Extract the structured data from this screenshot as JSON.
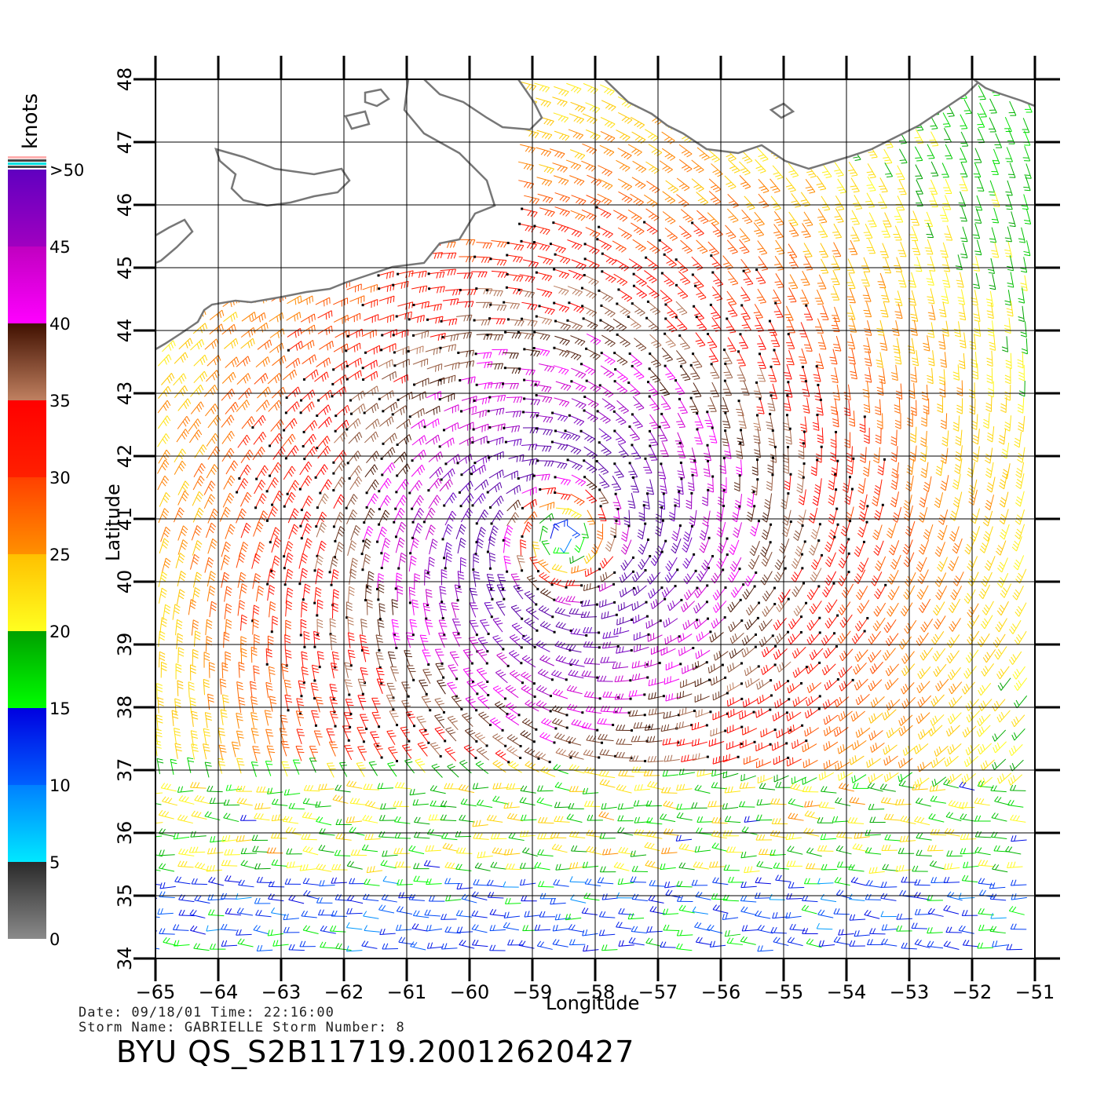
{
  "axes": {
    "xlabel": "Longitude",
    "ylabel": "Latitude",
    "lon_ticks": [
      -65,
      -64,
      -63,
      -62,
      -61,
      -60,
      -59,
      -58,
      -57,
      -56,
      -55,
      -54,
      -53,
      -52,
      -51
    ],
    "lat_ticks": [
      34,
      35,
      36,
      37,
      38,
      39,
      40,
      41,
      42,
      43,
      44,
      45,
      46,
      47,
      48
    ],
    "lon_range": [
      -65,
      -51
    ],
    "lat_range": [
      34,
      48
    ]
  },
  "colorbar": {
    "unit": "knots",
    "labels": [
      "0",
      "5",
      "10",
      "15",
      "20",
      "25",
      "30",
      "35",
      "40",
      "45",
      ">50"
    ],
    "bands": [
      {
        "from": 0,
        "to": 5,
        "top": "#2a2a2a",
        "bottom": "#8a8a8a"
      },
      {
        "from": 5,
        "to": 10,
        "top": "#0080ff",
        "bottom": "#00e8ff"
      },
      {
        "from": 10,
        "to": 15,
        "top": "#0000e0",
        "bottom": "#0060ff"
      },
      {
        "from": 15,
        "to": 20,
        "top": "#00a000",
        "bottom": "#00ff00"
      },
      {
        "from": 20,
        "to": 25,
        "top": "#ffc000",
        "bottom": "#ffff20"
      },
      {
        "from": 25,
        "to": 30,
        "top": "#ff4000",
        "bottom": "#ff9000"
      },
      {
        "from": 30,
        "to": 35,
        "top": "#ff0000",
        "bottom": "#ff2000"
      },
      {
        "from": 35,
        "to": 40,
        "top": "#401000",
        "bottom": "#c08060"
      },
      {
        "from": 40,
        "to": 45,
        "top": "#c000c0",
        "bottom": "#ff00ff"
      },
      {
        "from": 45,
        "to": 50,
        "top": "#6000c0",
        "bottom": "#a000c0"
      }
    ]
  },
  "storm": {
    "center_lon": -58.5,
    "center_lat": 40.7
  },
  "info": {
    "date_time": "Date: 09/18/01   Time: 22:16:00",
    "storm_line": "Storm Name: GABRIELLE   Storm Number: 8",
    "file_id": "BYU QS_S2B11719.20012620427"
  }
}
